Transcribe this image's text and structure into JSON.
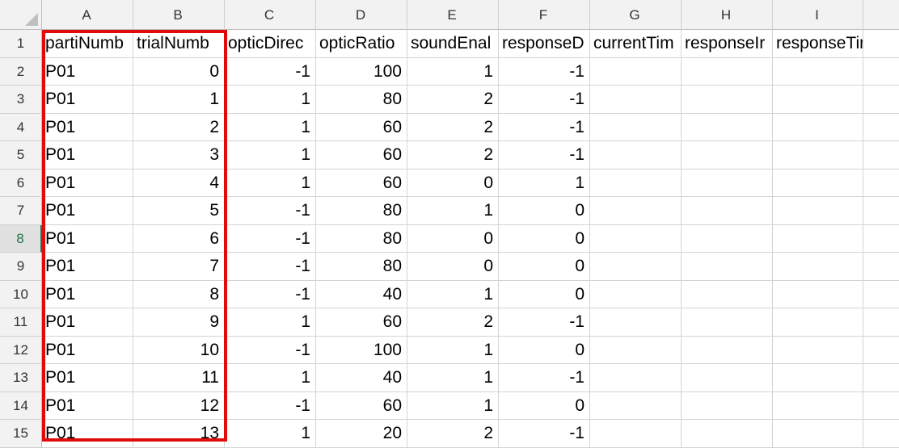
{
  "columns": [
    "A",
    "B",
    "C",
    "D",
    "E",
    "F",
    "G",
    "H",
    "I"
  ],
  "header_row": [
    "partiNumb",
    "trialNumb",
    "opticDirec",
    "opticRatio",
    "soundEnal",
    "responseD",
    "currentTim",
    "responseIr",
    "responseTime"
  ],
  "row_numbers": [
    "1",
    "2",
    "3",
    "4",
    "5",
    "6",
    "7",
    "8",
    "9",
    "10",
    "11",
    "12",
    "13",
    "14",
    "15"
  ],
  "rows": [
    [
      "P01",
      "0",
      "-1",
      "100",
      "1",
      "-1"
    ],
    [
      "P01",
      "1",
      "1",
      "80",
      "2",
      "-1"
    ],
    [
      "P01",
      "2",
      "1",
      "60",
      "2",
      "-1"
    ],
    [
      "P01",
      "3",
      "1",
      "60",
      "2",
      "-1"
    ],
    [
      "P01",
      "4",
      "1",
      "60",
      "0",
      "1"
    ],
    [
      "P01",
      "5",
      "-1",
      "80",
      "1",
      "0"
    ],
    [
      "P01",
      "6",
      "-1",
      "80",
      "0",
      "0"
    ],
    [
      "P01",
      "7",
      "-1",
      "80",
      "0",
      "0"
    ],
    [
      "P01",
      "8",
      "-1",
      "40",
      "1",
      "0"
    ],
    [
      "P01",
      "9",
      "1",
      "60",
      "2",
      "-1"
    ],
    [
      "P01",
      "10",
      "-1",
      "100",
      "1",
      "0"
    ],
    [
      "P01",
      "11",
      "1",
      "40",
      "1",
      "-1"
    ],
    [
      "P01",
      "12",
      "-1",
      "60",
      "1",
      "0"
    ],
    [
      "P01",
      "13",
      "1",
      "20",
      "2",
      "-1"
    ]
  ],
  "active_row": "8",
  "highlight_color": "#e10b0b"
}
